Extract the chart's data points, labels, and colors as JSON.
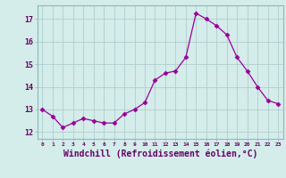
{
  "x": [
    0,
    1,
    2,
    3,
    4,
    5,
    6,
    7,
    8,
    9,
    10,
    11,
    12,
    13,
    14,
    15,
    16,
    17,
    18,
    19,
    20,
    21,
    22,
    23
  ],
  "y": [
    13.0,
    12.7,
    12.2,
    12.4,
    12.6,
    12.5,
    12.4,
    12.4,
    12.8,
    13.0,
    13.3,
    14.3,
    14.6,
    14.7,
    15.3,
    17.25,
    17.0,
    16.7,
    16.3,
    15.3,
    14.7,
    14.0,
    13.4,
    13.25
  ],
  "line_color": "#990099",
  "marker": "D",
  "marker_size": 2.5,
  "bg_color": "#d4ecea",
  "grid_color": "#b0cece",
  "xlabel": "Windchill (Refroidissement éolien,°C)",
  "xlabel_fontsize": 7,
  "yticks": [
    12,
    13,
    14,
    15,
    16,
    17
  ],
  "xticks": [
    0,
    1,
    2,
    3,
    4,
    5,
    6,
    7,
    8,
    9,
    10,
    11,
    12,
    13,
    14,
    15,
    16,
    17,
    18,
    19,
    20,
    21,
    22,
    23
  ],
  "ylim": [
    11.7,
    17.6
  ],
  "xlim": [
    -0.5,
    23.5
  ]
}
